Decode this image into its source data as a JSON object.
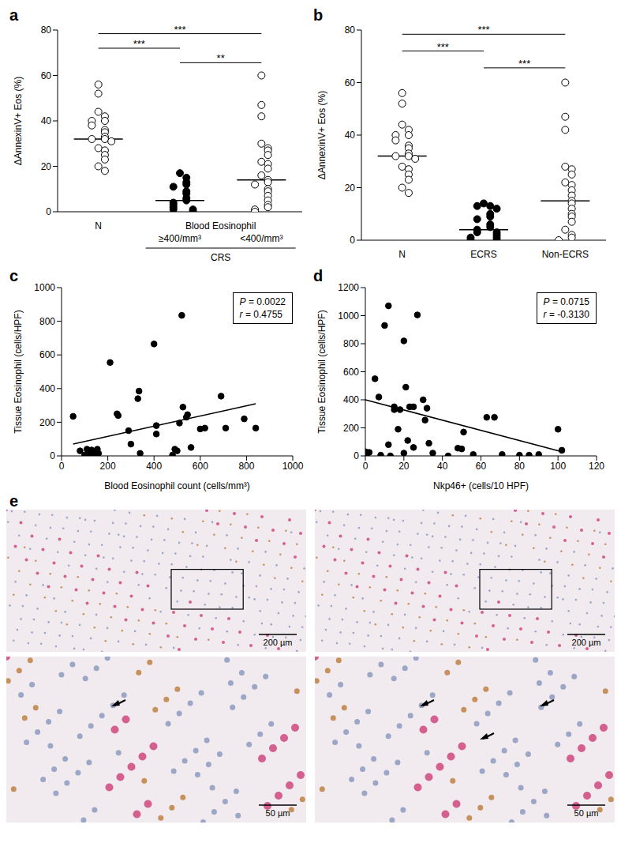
{
  "chart_data": [
    {
      "type": "dot",
      "title": "a",
      "y_label": "ΔAnnexinV+ Eos (%)",
      "categories": [
        "N",
        "≥400/mm³",
        "<400/mm³"
      ],
      "category_header": "Blood Eosinophil",
      "category_group": "CRS",
      "grouped_categories": [
        1,
        2
      ],
      "ylim": [
        0,
        80
      ],
      "yticks": [
        0,
        20,
        40,
        60,
        80
      ],
      "color": "#000000",
      "groups": [
        {
          "marker": "open",
          "median": 32,
          "values": [
            56,
            52,
            44,
            42,
            40,
            40,
            38,
            36,
            35,
            33,
            32,
            32,
            31,
            28,
            27,
            25,
            23,
            20,
            18
          ]
        },
        {
          "marker": "filled",
          "median": 5,
          "values": [
            17,
            15,
            13,
            12,
            11,
            9,
            8,
            6,
            5,
            4,
            3,
            2,
            1,
            1,
            0
          ]
        },
        {
          "marker": "open",
          "median": 14,
          "values": [
            60,
            47,
            42,
            30,
            28,
            27,
            25,
            22,
            21,
            19,
            16,
            14,
            13,
            12,
            10,
            9,
            7,
            5,
            3,
            2,
            1,
            0
          ]
        }
      ],
      "significance": [
        {
          "from": 0,
          "to": 2,
          "label": "***"
        },
        {
          "from": 0,
          "to": 1,
          "label": "***"
        },
        {
          "from": 1,
          "to": 2,
          "label": "**"
        }
      ]
    },
    {
      "type": "dot",
      "title": "b",
      "y_label": "ΔAnnexinV+ Eos (%)",
      "categories": [
        "N",
        "ECRS",
        "Non-ECRS"
      ],
      "ylim": [
        0,
        80
      ],
      "yticks": [
        0,
        20,
        40,
        60,
        80
      ],
      "color": "#000000",
      "groups": [
        {
          "marker": "open",
          "median": 32,
          "values": [
            56,
            52,
            44,
            42,
            40,
            40,
            38,
            36,
            35,
            33,
            32,
            32,
            31,
            28,
            27,
            25,
            23,
            20,
            18
          ]
        },
        {
          "marker": "filled",
          "median": 4,
          "values": [
            14,
            13,
            13,
            12,
            10,
            9,
            8,
            6,
            5,
            4,
            3,
            3,
            2,
            1,
            1,
            0,
            0
          ]
        },
        {
          "marker": "open",
          "median": 15,
          "values": [
            60,
            47,
            42,
            28,
            27,
            25,
            22,
            21,
            19,
            17,
            15,
            14,
            12,
            10,
            9,
            7,
            4,
            2,
            1,
            0
          ]
        }
      ],
      "significance": [
        {
          "from": 0,
          "to": 2,
          "label": "***"
        },
        {
          "from": 0,
          "to": 1,
          "label": "***"
        },
        {
          "from": 1,
          "to": 2,
          "label": "***"
        }
      ]
    },
    {
      "type": "scatter",
      "title": "c",
      "x_label": "Blood Eosinophil count (cells/mm³)",
      "y_label": "Tissue Eosinophil (cells/HPF)",
      "xlim": [
        0,
        1000
      ],
      "xticks": [
        0,
        200,
        400,
        600,
        800,
        1000
      ],
      "ylim": [
        0,
        1000
      ],
      "yticks": [
        0,
        200,
        400,
        600,
        800,
        1000
      ],
      "color": "#000000",
      "marker": "filled",
      "x": [
        50,
        80,
        100,
        110,
        120,
        125,
        130,
        140,
        150,
        155,
        160,
        210,
        240,
        245,
        290,
        300,
        330,
        335,
        340,
        400,
        410,
        410,
        480,
        490,
        500,
        510,
        520,
        525,
        540,
        545,
        560,
        600,
        620,
        690,
        710,
        790,
        840
      ],
      "y": [
        235,
        30,
        5,
        40,
        20,
        10,
        35,
        5,
        25,
        40,
        15,
        555,
        250,
        240,
        150,
        70,
        340,
        385,
        15,
        665,
        130,
        180,
        5,
        40,
        30,
        195,
        835,
        290,
        230,
        245,
        50,
        160,
        165,
        355,
        165,
        220,
        165
      ],
      "fit_line": {
        "x": [
          50,
          840
        ],
        "y": [
          70,
          310
        ]
      },
      "annotations": [
        "P = 0.0022",
        "r = 0.4755"
      ]
    },
    {
      "type": "scatter",
      "title": "d",
      "x_label": "Nkp46+ (cells/10 HPF)",
      "y_label": "Tissue Eosinophil (cells/HPF)",
      "xlim": [
        0,
        120
      ],
      "xticks": [
        0,
        20,
        40,
        60,
        80,
        100,
        120
      ],
      "ylim": [
        0,
        1200
      ],
      "yticks": [
        0,
        200,
        400,
        600,
        800,
        1000,
        1200
      ],
      "color": "#000000",
      "marker": "filled",
      "x": [
        0,
        1,
        2,
        5,
        7,
        8,
        10,
        12,
        12,
        13,
        15,
        15,
        17,
        18,
        20,
        20,
        21,
        22,
        23,
        25,
        25,
        27,
        30,
        31,
        32,
        33,
        35,
        43,
        48,
        50,
        51,
        56,
        63,
        67,
        71,
        80,
        85,
        90,
        100,
        102
      ],
      "y": [
        30,
        20,
        25,
        550,
        420,
        5,
        930,
        80,
        1070,
        0,
        350,
        330,
        190,
        330,
        20,
        820,
        490,
        110,
        350,
        350,
        60,
        1005,
        400,
        255,
        340,
        90,
        20,
        0,
        55,
        50,
        170,
        10,
        275,
        275,
        10,
        5,
        5,
        10,
        190,
        40
      ],
      "fit_line": {
        "x": [
          0,
          102
        ],
        "y": [
          400,
          30
        ]
      },
      "annotations": [
        "P = 0.0715",
        "r = -0.3130"
      ]
    }
  ],
  "figure": {
    "title": "e",
    "images": [
      {
        "scale_bar": "200 µm"
      },
      {
        "scale_bar": "200 µm"
      },
      {
        "scale_bar": "50 µm"
      },
      {
        "scale_bar": "50 µm"
      }
    ]
  }
}
